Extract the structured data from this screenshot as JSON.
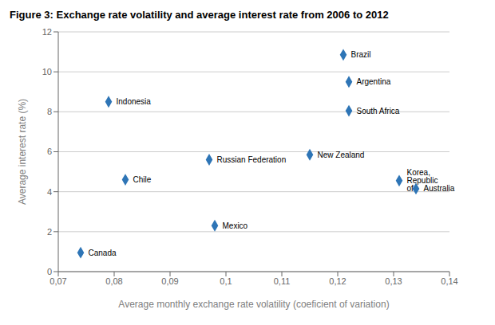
{
  "chart_data": {
    "type": "scatter",
    "title": "Figure 3: Exchange rate volatility and average interest rate from 2006 to 2012",
    "xlabel": "Average monthly exchange rate volatility (coeficient of variation)",
    "ylabel": "Average interest rate (%)",
    "xlim": [
      0.07,
      0.14
    ],
    "ylim": [
      0,
      12
    ],
    "xticks": [
      {
        "value": 0.07,
        "label": "0,07"
      },
      {
        "value": 0.08,
        "label": "0,08"
      },
      {
        "value": 0.09,
        "label": "0,09"
      },
      {
        "value": 0.1,
        "label": "0,1"
      },
      {
        "value": 0.11,
        "label": "0,11"
      },
      {
        "value": 0.12,
        "label": "0,12"
      },
      {
        "value": 0.13,
        "label": "0,13"
      },
      {
        "value": 0.14,
        "label": "0,14"
      }
    ],
    "yticks": [
      0,
      2,
      4,
      6,
      8,
      10,
      12
    ],
    "points": [
      {
        "label": "Brazil",
        "x": 0.121,
        "y": 10.85
      },
      {
        "label": "Argentina",
        "x": 0.122,
        "y": 9.5
      },
      {
        "label": "Indonesia",
        "x": 0.079,
        "y": 8.5
      },
      {
        "label": "South Africa",
        "x": 0.122,
        "y": 8.05
      },
      {
        "label": "New Zealand",
        "x": 0.115,
        "y": 5.85
      },
      {
        "label": "Russian Federation",
        "x": 0.097,
        "y": 5.6
      },
      {
        "label": "Chile",
        "x": 0.082,
        "y": 4.6
      },
      {
        "label": "Korea, Republic of",
        "x": 0.131,
        "y": 4.55
      },
      {
        "label": "Australia",
        "x": 0.134,
        "y": 4.15
      },
      {
        "label": "Mexico",
        "x": 0.098,
        "y": 2.3
      },
      {
        "label": "Canada",
        "x": 0.074,
        "y": 0.95
      }
    ],
    "color": "#2E75B6",
    "marker": "diamond",
    "grid": "y"
  }
}
